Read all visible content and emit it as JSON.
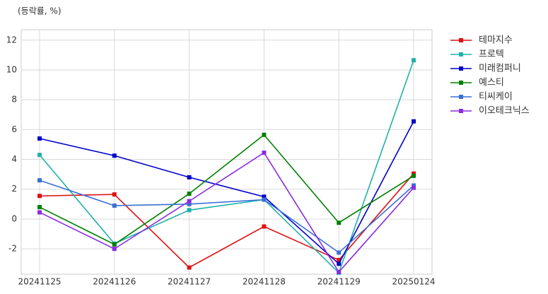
{
  "chart_data": {
    "type": "line",
    "y_label": "(등락률, %)",
    "categories": [
      "20241125",
      "20241126",
      "20241127",
      "20241128",
      "20241129",
      "20250124"
    ],
    "series": [
      {
        "name": "테마지수",
        "color": "#e01010",
        "values": [
          1.55,
          1.65,
          -3.25,
          -0.5,
          -2.75,
          3.05
        ]
      },
      {
        "name": "프로텍",
        "color": "#20b2aa",
        "values": [
          4.3,
          -1.65,
          0.6,
          1.3,
          -3.6,
          10.65
        ]
      },
      {
        "name": "미래컴퍼니",
        "color": "#0000cc",
        "values": [
          5.4,
          4.25,
          2.8,
          1.5,
          -3.0,
          6.55
        ]
      },
      {
        "name": "예스티",
        "color": "#008000",
        "values": [
          0.8,
          -1.7,
          1.7,
          5.65,
          -0.25,
          2.9
        ]
      },
      {
        "name": "티씨케이",
        "color": "#3a6fd8",
        "values": [
          2.6,
          0.9,
          1.0,
          1.3,
          -2.25,
          2.25
        ]
      },
      {
        "name": "이오테크닉스",
        "color": "#8a2be2",
        "values": [
          0.45,
          -2.0,
          1.2,
          4.45,
          -3.55,
          2.1
        ]
      }
    ],
    "ylim": [
      -3.7,
      12.7
    ],
    "yticks": [
      -2,
      0,
      2,
      4,
      6,
      8,
      10,
      12
    ],
    "grid": true,
    "legend": "outside-right"
  }
}
